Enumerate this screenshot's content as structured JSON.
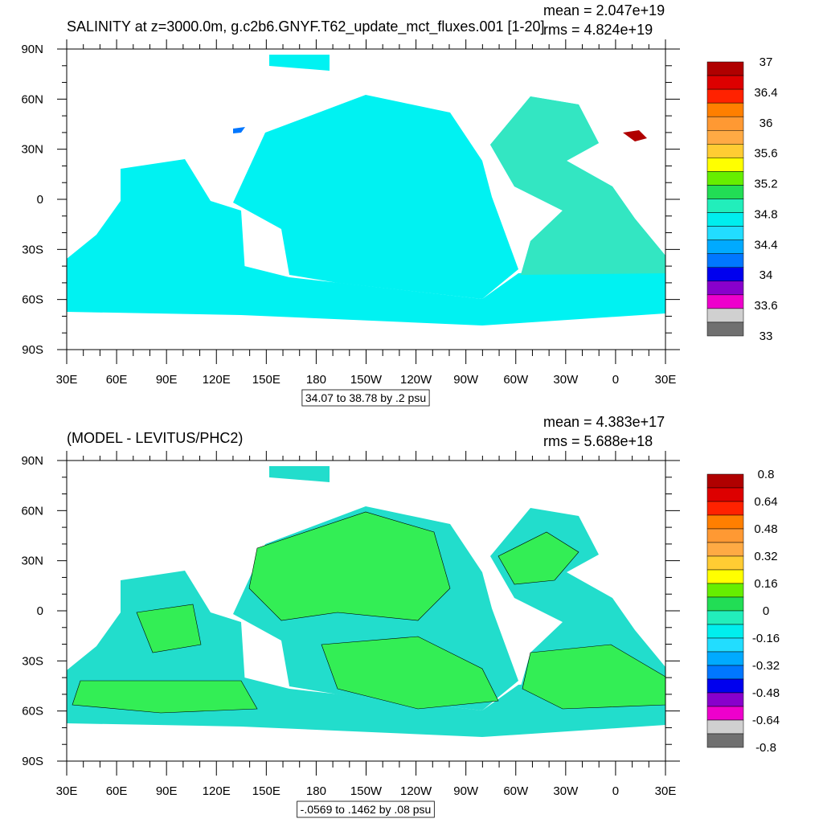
{
  "panels": [
    {
      "title": "SALINITY at z=3000.0m, g.c2b6.GNYF.T62_update_mct_fluxes.001 [1-20]",
      "stats": [
        "mean = 2.047e+19",
        "rms = 4.824e+19"
      ],
      "info": "34.07 to 38.78 by .2 psu",
      "colorbar": {
        "labels": [
          "37",
          "36.4",
          "36",
          "35.6",
          "35.2",
          "34.8",
          "34.4",
          "34",
          "33.6",
          "33"
        ],
        "colors": [
          "#b00000",
          "#dd0000",
          "#ff2200",
          "#ff7f00",
          "#ff9933",
          "#ffaa44",
          "#ffcc33",
          "#ffff00",
          "#66ee00",
          "#22dd55",
          "#22eebb",
          "#00eeee",
          "#22ddff",
          "#00aaff",
          "#0077ff",
          "#0000ee",
          "#8800cc",
          "#ee00cc",
          "#d0d0d0",
          "#707070"
        ]
      }
    },
    {
      "title": "(MODEL - LEVITUS/PHC2)",
      "stats": [
        "mean = 4.383e+17",
        "rms = 5.688e+18"
      ],
      "info": "-.0569 to .1462 by .08 psu",
      "colorbar": {
        "labels": [
          "0.8",
          "0.64",
          "0.48",
          "0.32",
          "0.16",
          "0",
          "-0.16",
          "-0.32",
          "-0.48",
          "-0.64",
          "-0.8"
        ],
        "colors": [
          "#b00000",
          "#dd0000",
          "#ff2200",
          "#ff7f00",
          "#ff9933",
          "#ffaa44",
          "#ffcc33",
          "#ffff00",
          "#66ee00",
          "#22dd55",
          "#22eebb",
          "#00eeee",
          "#22ddff",
          "#00aaff",
          "#0077ff",
          "#0000ee",
          "#8800cc",
          "#ee00cc",
          "#d0d0d0",
          "#707070"
        ]
      }
    }
  ],
  "lat_labels": [
    "90N",
    "60N",
    "30N",
    "0",
    "30S",
    "60S",
    "90S"
  ],
  "lon_labels": [
    "30E",
    "60E",
    "90E",
    "120E",
    "150E",
    "180",
    "150W",
    "120W",
    "90W",
    "60W",
    "30W",
    "0",
    "30E"
  ]
}
